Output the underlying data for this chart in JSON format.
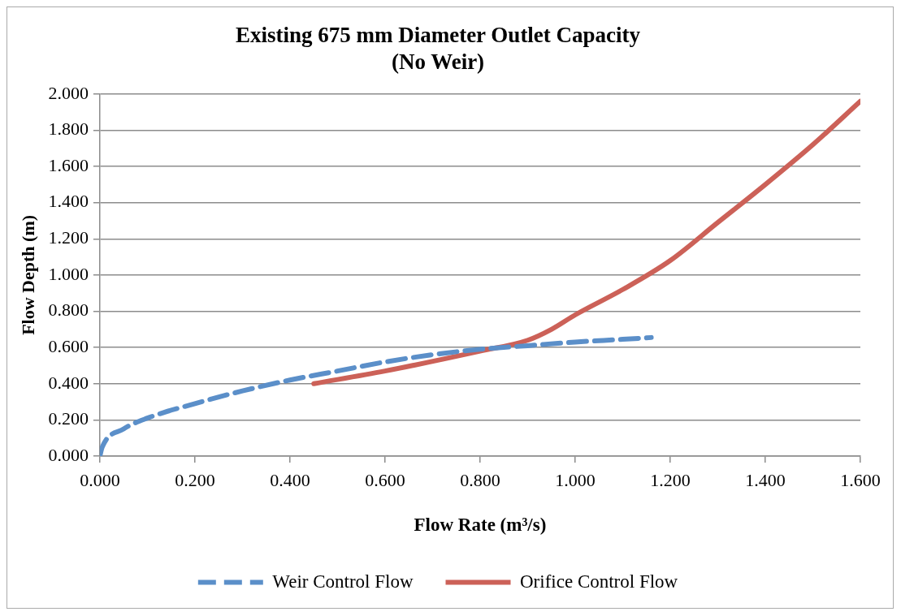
{
  "chart_data": {
    "type": "line",
    "title": [
      "Existing 675 mm Diameter Outlet Capacity",
      "(No Weir)"
    ],
    "xlabel": "Flow Rate (m³/s)",
    "ylabel": "Flow Depth (m)",
    "xlim": [
      0,
      1.6
    ],
    "xticks": [
      {
        "value": 0,
        "label": "0.000"
      },
      {
        "value": 0.2,
        "label": "0.200"
      },
      {
        "value": 0.4,
        "label": "0.400"
      },
      {
        "value": 0.6,
        "label": "0.600"
      },
      {
        "value": 0.8,
        "label": "0.800"
      },
      {
        "value": 1.0,
        "label": "1.000"
      },
      {
        "value": 1.2,
        "label": "1.200"
      },
      {
        "value": 1.4,
        "label": "1.400"
      },
      {
        "value": 1.6,
        "label": "1.600"
      }
    ],
    "ylim": [
      0,
      2
    ],
    "yticks": [
      {
        "value": 0,
        "label": "0.000"
      },
      {
        "value": 0.2,
        "label": "0.200"
      },
      {
        "value": 0.4,
        "label": "0.400"
      },
      {
        "value": 0.6,
        "label": "0.600"
      },
      {
        "value": 0.8,
        "label": "0.800"
      },
      {
        "value": 1.0,
        "label": "1.000"
      },
      {
        "value": 1.2,
        "label": "1.200"
      },
      {
        "value": 1.4,
        "label": "1.400"
      },
      {
        "value": 1.6,
        "label": "1.600"
      },
      {
        "value": 1.8,
        "label": "1.800"
      },
      {
        "value": 2.0,
        "label": "2.000"
      }
    ],
    "grid": "y",
    "legend": "bottom",
    "marker": "none",
    "series": [
      {
        "name": "Weir Control Flow",
        "color": "#5b8fc9",
        "line_style": "dashed",
        "x": [
          0,
          0.005,
          0.05,
          0.1,
          0.2,
          0.3,
          0.4,
          0.5,
          0.6,
          0.7,
          0.8,
          0.9,
          1.0,
          1.1,
          1.16
        ],
        "values": [
          0,
          0.05,
          0.15,
          0.21,
          0.29,
          0.36,
          0.42,
          0.47,
          0.52,
          0.56,
          0.59,
          0.61,
          0.63,
          0.645,
          0.655
        ]
      },
      {
        "name": "Orifice Control Flow",
        "color": "#cc6158",
        "line_style": "solid",
        "x": [
          0.45,
          0.6,
          0.8,
          0.9,
          0.95,
          1.0,
          1.1,
          1.2,
          1.3,
          1.4,
          1.5,
          1.6
        ],
        "values": [
          0.4,
          0.47,
          0.58,
          0.64,
          0.7,
          0.78,
          0.92,
          1.08,
          1.29,
          1.5,
          1.72,
          1.96
        ]
      }
    ]
  }
}
